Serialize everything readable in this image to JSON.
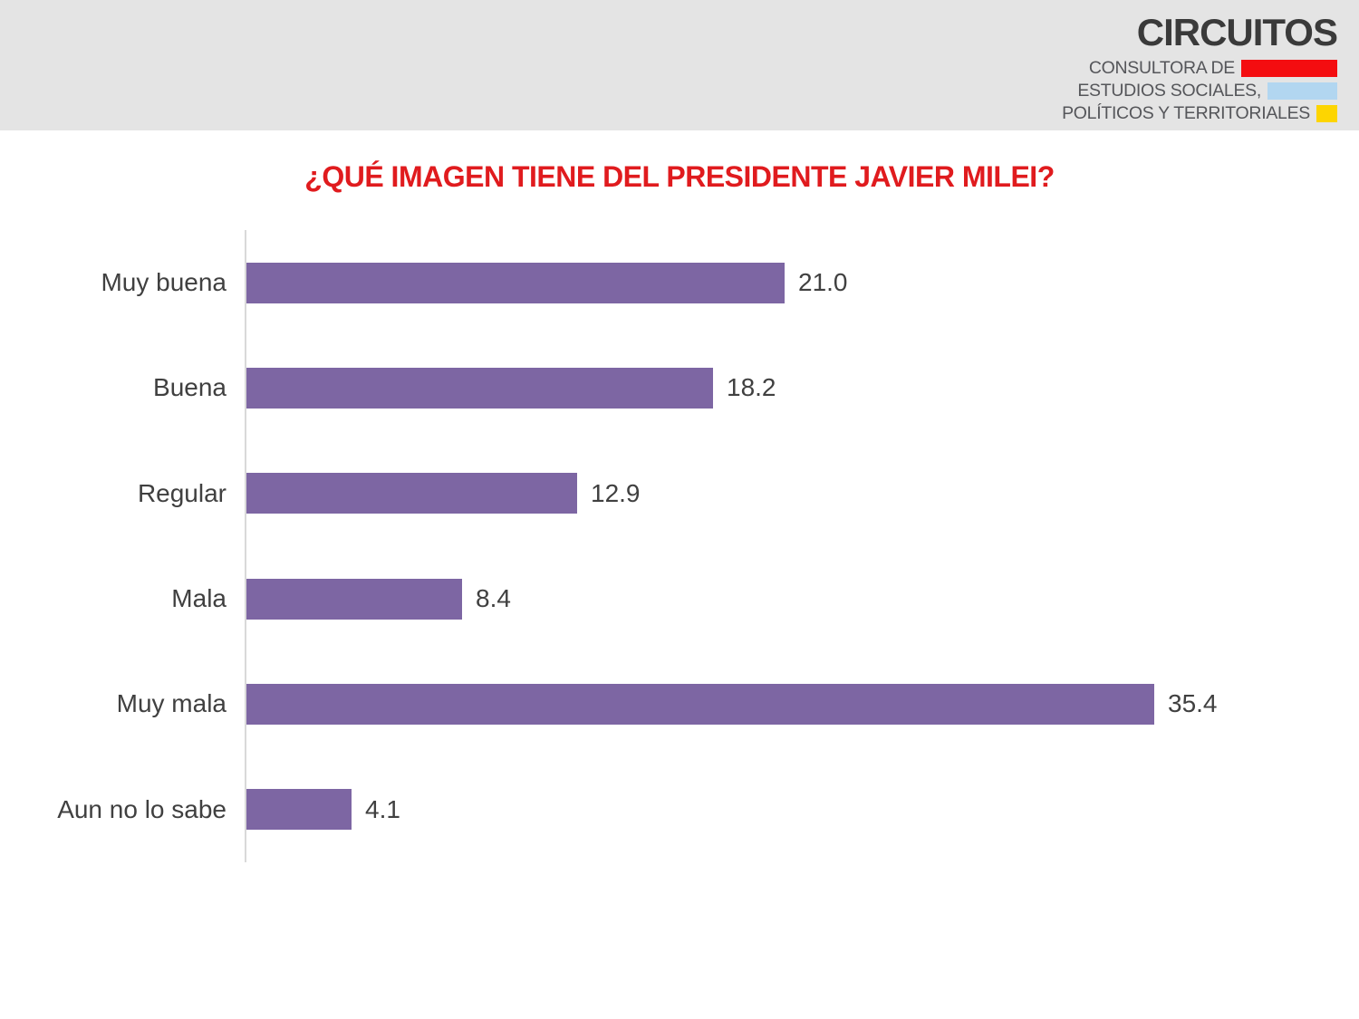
{
  "header": {
    "logo": {
      "brand": "CIRCUITOS",
      "line1": {
        "text": "CONSULTORA DE",
        "color": "#f40d10"
      },
      "line2": {
        "text": "ESTUDIOS SOCIALES,",
        "color": "#b2d6f0"
      },
      "line3": {
        "text": "POLÍTICOS Y TERRITORIALES",
        "color": "#fdd501"
      }
    }
  },
  "chart_data": {
    "type": "bar",
    "orientation": "horizontal",
    "title": "¿QUÉ IMAGEN TIENE DEL PRESIDENTE JAVIER MILEI?",
    "title_color": "#e01b1e",
    "categories": [
      "Muy buena",
      "Buena",
      "Regular",
      "Mala",
      "Muy mala",
      "Aun no lo sabe"
    ],
    "values": [
      21.0,
      18.2,
      12.9,
      8.4,
      35.4,
      4.1
    ],
    "value_labels": [
      "21.0",
      "18.2",
      "12.9",
      "8.4",
      "35.4",
      "4.1"
    ],
    "bar_color": "#7d66a3",
    "label_color": "#404040",
    "axis_color": "#d9d9d9",
    "xlim": [
      0,
      40
    ],
    "grid": false,
    "legend": false,
    "value_label_position": "end-of-bar"
  }
}
